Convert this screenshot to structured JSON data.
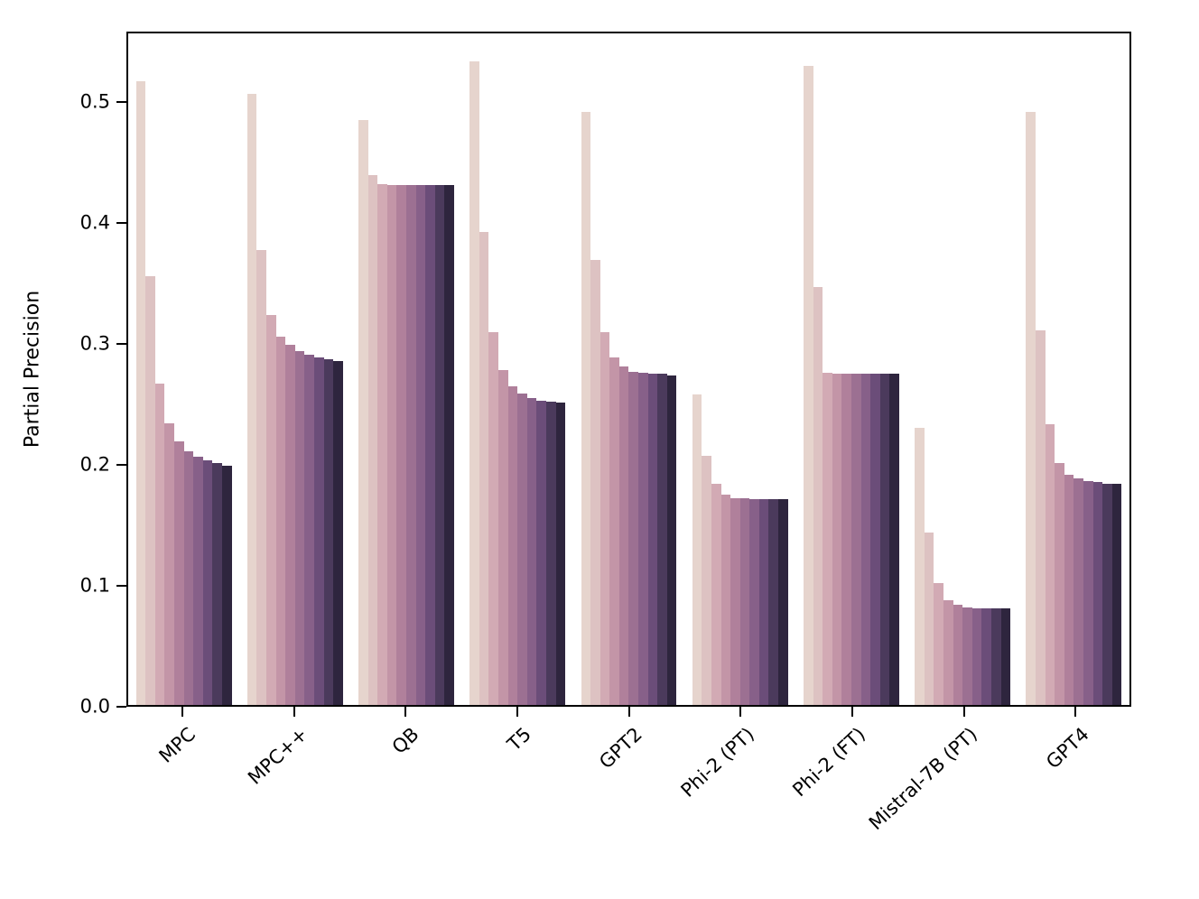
{
  "chart_data": {
    "type": "bar",
    "title": "",
    "xlabel": "",
    "ylabel": "Partial Precision",
    "ylim": [
      0,
      0.558
    ],
    "grid": false,
    "legend": false,
    "bars_per_group": 10,
    "ytick_labels": [
      "0.0",
      "0.1",
      "0.2",
      "0.3",
      "0.4",
      "0.5"
    ],
    "ytick_values": [
      0.0,
      0.1,
      0.2,
      0.3,
      0.4,
      0.5
    ],
    "palette": [
      "#e6d4cd",
      "#ddc2c2",
      "#d2aab4",
      "#c395a7",
      "#b0809b",
      "#9c7092",
      "#876089",
      "#6b4d79",
      "#4b3a5c",
      "#2e253e"
    ],
    "categories": [
      "MPC",
      "MPC++",
      "QB",
      "T5",
      "GPT2",
      "Phi-2 (PT)",
      "Phi-2 (FT)",
      "Mistral-7B (PT)",
      "GPT4"
    ],
    "groups": [
      {
        "label": "MPC",
        "values": [
          0.518,
          0.356,
          0.267,
          0.234,
          0.219,
          0.211,
          0.206,
          0.203,
          0.201,
          0.199
        ]
      },
      {
        "label": "MPC++",
        "values": [
          0.508,
          0.378,
          0.324,
          0.306,
          0.299,
          0.294,
          0.291,
          0.289,
          0.287,
          0.286
        ]
      },
      {
        "label": "QB",
        "values": [
          0.486,
          0.44,
          0.433,
          0.432,
          0.432,
          0.432,
          0.432,
          0.432,
          0.432,
          0.432
        ]
      },
      {
        "label": "T5",
        "values": [
          0.535,
          0.393,
          0.31,
          0.278,
          0.265,
          0.259,
          0.255,
          0.253,
          0.252,
          0.251
        ]
      },
      {
        "label": "GPT2",
        "values": [
          0.493,
          0.37,
          0.31,
          0.289,
          0.281,
          0.277,
          0.276,
          0.275,
          0.275,
          0.274
        ]
      },
      {
        "label": "Phi-2 (PT)",
        "values": [
          0.258,
          0.207,
          0.184,
          0.175,
          0.172,
          0.172,
          0.171,
          0.171,
          0.171,
          0.171
        ]
      },
      {
        "label": "Phi-2 (FT)",
        "values": [
          0.531,
          0.347,
          0.276,
          0.275,
          0.275,
          0.275,
          0.275,
          0.275,
          0.275,
          0.275
        ]
      },
      {
        "label": "Mistral-7B (PT)",
        "values": [
          0.23,
          0.143,
          0.101,
          0.087,
          0.083,
          0.081,
          0.08,
          0.08,
          0.08,
          0.08
        ]
      },
      {
        "label": "GPT4",
        "values": [
          0.493,
          0.311,
          0.233,
          0.201,
          0.191,
          0.188,
          0.186,
          0.185,
          0.184,
          0.184
        ]
      }
    ]
  }
}
